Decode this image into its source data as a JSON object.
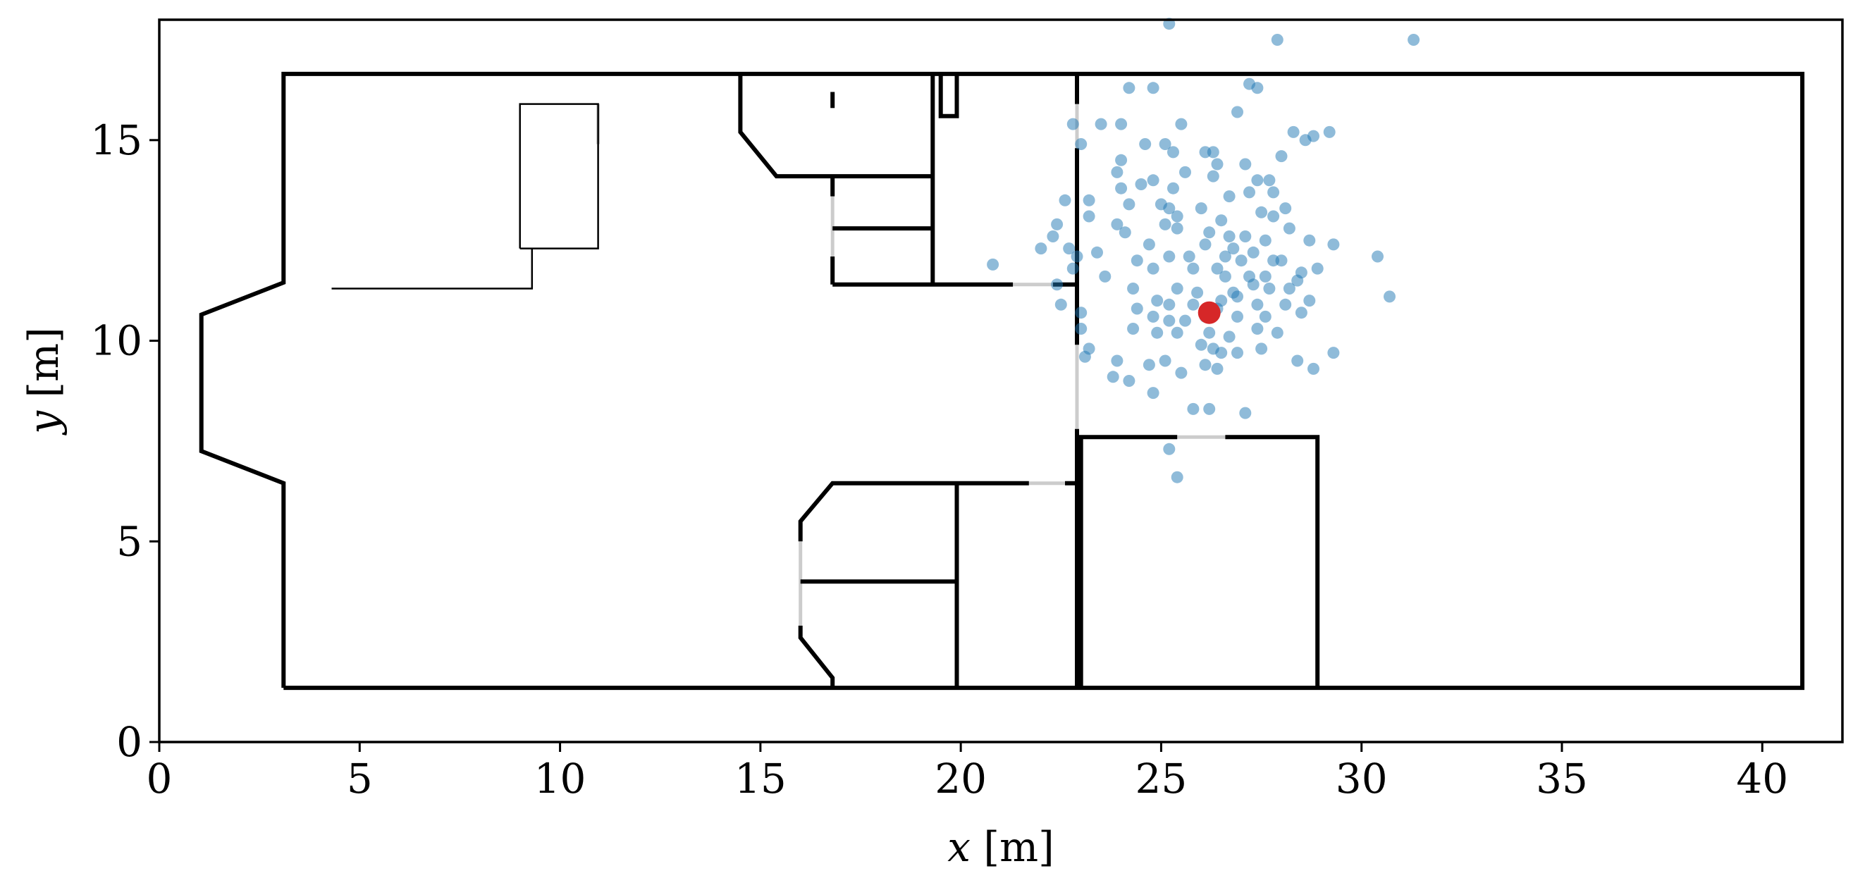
{
  "chart_data": {
    "type": "scatter",
    "xlabel": {
      "var": "x",
      "unit": " [m]"
    },
    "ylabel": {
      "var": "y",
      "unit": " [m]"
    },
    "xlim": [
      0,
      42
    ],
    "ylim": [
      0,
      18
    ],
    "xticks": [
      0,
      5,
      10,
      15,
      20,
      25,
      30,
      35,
      40
    ],
    "yticks": [
      0,
      5,
      10,
      15
    ],
    "grid": false,
    "colors": {
      "walls": "#000000",
      "doors": "#cccccc",
      "particles": "#1f77b4",
      "estimate": "#d62728"
    },
    "floorplan": {
      "walls": [
        [
          [
            3.1,
            1.35
          ],
          [
            41.0,
            1.35
          ],
          [
            41.0,
            16.65
          ],
          [
            3.1,
            16.65
          ],
          [
            3.1,
            11.45
          ],
          [
            1.05,
            10.65
          ],
          [
            1.05,
            7.25
          ],
          [
            3.1,
            6.45
          ],
          [
            3.1,
            1.35
          ]
        ],
        [
          [
            14.5,
            16.65
          ],
          [
            14.5,
            15.2
          ],
          [
            15.4,
            14.1
          ],
          [
            19.3,
            14.1
          ]
        ],
        [
          [
            16.8,
            16.2
          ],
          [
            16.8,
            15.8
          ]
        ],
        [
          [
            16.8,
            14.1
          ],
          [
            16.8,
            13.6
          ]
        ],
        [
          [
            16.8,
            12.1
          ],
          [
            16.8,
            11.4
          ]
        ],
        [
          [
            16.8,
            12.8
          ],
          [
            19.3,
            12.8
          ]
        ],
        [
          [
            19.3,
            16.65
          ],
          [
            19.3,
            11.4
          ]
        ],
        [
          [
            19.5,
            16.65
          ],
          [
            19.5,
            15.6
          ],
          [
            19.9,
            15.6
          ],
          [
            19.9,
            16.65
          ]
        ],
        [
          [
            16.8,
            11.4
          ],
          [
            21.3,
            11.4
          ]
        ],
        [
          [
            22.3,
            11.4
          ],
          [
            22.9,
            11.4
          ]
        ],
        [
          [
            22.9,
            16.65
          ],
          [
            22.9,
            15.9
          ]
        ],
        [
          [
            22.9,
            14.8
          ],
          [
            22.9,
            9.9
          ]
        ],
        [
          [
            22.9,
            7.8
          ],
          [
            22.9,
            1.35
          ]
        ],
        [
          [
            16.8,
            1.35
          ],
          [
            16.8,
            1.6
          ],
          [
            16.0,
            2.6
          ],
          [
            16.0,
            2.9
          ]
        ],
        [
          [
            16.0,
            5.0
          ],
          [
            16.0,
            5.5
          ],
          [
            16.8,
            6.45
          ],
          [
            21.7,
            6.45
          ]
        ],
        [
          [
            22.6,
            6.45
          ],
          [
            22.9,
            6.45
          ]
        ],
        [
          [
            16.0,
            4.0
          ],
          [
            19.9,
            4.0
          ]
        ],
        [
          [
            19.9,
            6.45
          ],
          [
            19.9,
            1.35
          ]
        ],
        [
          [
            23.0,
            1.35
          ],
          [
            23.0,
            7.6
          ],
          [
            25.4,
            7.6
          ]
        ],
        [
          [
            26.6,
            7.6
          ],
          [
            28.9,
            7.6
          ],
          [
            28.9,
            1.35
          ]
        ]
      ],
      "doors": [
        [
          [
            16.8,
            13.6
          ],
          [
            16.8,
            12.1
          ]
        ],
        [
          [
            21.3,
            11.4
          ],
          [
            22.3,
            11.4
          ]
        ],
        [
          [
            22.9,
            15.9
          ],
          [
            22.9,
            14.8
          ]
        ],
        [
          [
            22.9,
            9.9
          ],
          [
            22.9,
            7.8
          ]
        ],
        [
          [
            16.0,
            2.9
          ],
          [
            16.0,
            5.0
          ]
        ],
        [
          [
            21.7,
            6.45
          ],
          [
            22.6,
            6.45
          ]
        ],
        [
          [
            25.4,
            7.6
          ],
          [
            26.6,
            7.6
          ]
        ],
        [
          [
            10.95,
            15.9
          ],
          [
            10.95,
            14.9
          ]
        ]
      ],
      "furniture": [
        [
          [
            9.0,
            12.3
          ],
          [
            9.0,
            15.9
          ],
          [
            10.95,
            15.9
          ],
          [
            10.95,
            14.9
          ]
        ],
        [
          [
            10.95,
            14.9
          ],
          [
            10.95,
            12.3
          ],
          [
            9.0,
            12.3
          ]
        ],
        [
          [
            4.3,
            11.3
          ],
          [
            9.3,
            11.3
          ],
          [
            9.3,
            12.3
          ]
        ]
      ]
    },
    "series": [
      {
        "type": "scatter",
        "values": [
          [
            25.2,
            17.9
          ],
          [
            27.9,
            17.5
          ],
          [
            31.3,
            17.5
          ],
          [
            24.2,
            16.3
          ],
          [
            24.8,
            16.3
          ],
          [
            27.2,
            16.4
          ],
          [
            27.4,
            16.3
          ],
          [
            26.9,
            15.7
          ],
          [
            22.8,
            15.4
          ],
          [
            23.5,
            15.4
          ],
          [
            24.0,
            15.4
          ],
          [
            25.5,
            15.4
          ],
          [
            28.3,
            15.2
          ],
          [
            28.6,
            15.0
          ],
          [
            28.8,
            15.1
          ],
          [
            29.2,
            15.2
          ],
          [
            24.6,
            14.9
          ],
          [
            25.1,
            14.9
          ],
          [
            25.3,
            14.7
          ],
          [
            26.1,
            14.7
          ],
          [
            26.3,
            14.7
          ],
          [
            23.0,
            14.9
          ],
          [
            24.0,
            14.5
          ],
          [
            26.4,
            14.4
          ],
          [
            27.1,
            14.4
          ],
          [
            28.0,
            14.6
          ],
          [
            23.9,
            14.2
          ],
          [
            25.6,
            14.2
          ],
          [
            26.3,
            14.1
          ],
          [
            26.7,
            13.6
          ],
          [
            27.2,
            13.7
          ],
          [
            27.4,
            14.0
          ],
          [
            27.7,
            14.0
          ],
          [
            27.8,
            13.7
          ],
          [
            24.0,
            13.8
          ],
          [
            24.5,
            13.9
          ],
          [
            24.8,
            14.0
          ],
          [
            25.0,
            13.4
          ],
          [
            25.3,
            13.8
          ],
          [
            22.6,
            13.5
          ],
          [
            23.2,
            13.5
          ],
          [
            23.2,
            13.1
          ],
          [
            24.2,
            13.4
          ],
          [
            25.2,
            13.3
          ],
          [
            25.4,
            13.1
          ],
          [
            26.0,
            13.3
          ],
          [
            26.5,
            13.0
          ],
          [
            27.5,
            13.2
          ],
          [
            27.8,
            13.1
          ],
          [
            28.1,
            13.3
          ],
          [
            25.1,
            12.9
          ],
          [
            26.2,
            12.7
          ],
          [
            26.7,
            12.6
          ],
          [
            27.1,
            12.6
          ],
          [
            28.2,
            12.8
          ],
          [
            22.4,
            12.9
          ],
          [
            23.9,
            12.9
          ],
          [
            24.1,
            12.7
          ],
          [
            25.4,
            12.8
          ],
          [
            26.8,
            12.3
          ],
          [
            27.3,
            12.2
          ],
          [
            27.6,
            12.5
          ],
          [
            28.7,
            12.5
          ],
          [
            29.3,
            12.4
          ],
          [
            22.3,
            12.6
          ],
          [
            22.7,
            12.3
          ],
          [
            23.4,
            12.2
          ],
          [
            24.7,
            12.4
          ],
          [
            25.2,
            12.1
          ],
          [
            25.7,
            12.1
          ],
          [
            26.1,
            12.4
          ],
          [
            26.6,
            12.1
          ],
          [
            27.0,
            12.0
          ],
          [
            27.8,
            12.0
          ],
          [
            28.0,
            12.0
          ],
          [
            20.8,
            11.9
          ],
          [
            22.0,
            12.3
          ],
          [
            22.9,
            12.1
          ],
          [
            24.4,
            12.0
          ],
          [
            24.8,
            11.8
          ],
          [
            25.8,
            11.8
          ],
          [
            26.4,
            11.8
          ],
          [
            26.6,
            11.6
          ],
          [
            27.2,
            11.6
          ],
          [
            27.6,
            11.6
          ],
          [
            28.5,
            11.7
          ],
          [
            28.9,
            11.8
          ],
          [
            30.4,
            12.1
          ],
          [
            22.8,
            11.8
          ],
          [
            23.6,
            11.6
          ],
          [
            24.3,
            11.3
          ],
          [
            25.4,
            11.3
          ],
          [
            25.9,
            11.2
          ],
          [
            26.8,
            11.2
          ],
          [
            27.3,
            11.4
          ],
          [
            27.7,
            11.3
          ],
          [
            28.2,
            11.3
          ],
          [
            28.4,
            11.5
          ],
          [
            22.4,
            11.4
          ],
          [
            24.9,
            11.0
          ],
          [
            25.2,
            10.9
          ],
          [
            25.8,
            10.9
          ],
          [
            26.1,
            10.6
          ],
          [
            26.5,
            11.0
          ],
          [
            26.9,
            11.1
          ],
          [
            27.4,
            10.9
          ],
          [
            28.1,
            10.9
          ],
          [
            28.7,
            11.0
          ],
          [
            30.7,
            11.1
          ],
          [
            22.5,
            10.9
          ],
          [
            23.0,
            10.7
          ],
          [
            24.4,
            10.8
          ],
          [
            24.8,
            10.6
          ],
          [
            25.2,
            10.5
          ],
          [
            25.6,
            10.5
          ],
          [
            26.4,
            10.8
          ],
          [
            26.9,
            10.6
          ],
          [
            27.6,
            10.6
          ],
          [
            28.5,
            10.7
          ],
          [
            23.0,
            10.3
          ],
          [
            24.3,
            10.3
          ],
          [
            24.9,
            10.2
          ],
          [
            25.4,
            10.2
          ],
          [
            26.2,
            10.2
          ],
          [
            26.7,
            10.1
          ],
          [
            27.4,
            10.3
          ],
          [
            27.9,
            10.2
          ],
          [
            26.0,
            9.9
          ],
          [
            26.3,
            9.8
          ],
          [
            26.5,
            9.7
          ],
          [
            26.9,
            9.7
          ],
          [
            27.5,
            9.8
          ],
          [
            28.4,
            9.5
          ],
          [
            28.8,
            9.3
          ],
          [
            29.3,
            9.7
          ],
          [
            23.2,
            9.8
          ],
          [
            23.9,
            9.5
          ],
          [
            24.7,
            9.4
          ],
          [
            25.1,
            9.5
          ],
          [
            25.5,
            9.2
          ],
          [
            26.1,
            9.4
          ],
          [
            26.4,
            9.3
          ],
          [
            23.1,
            9.6
          ],
          [
            23.8,
            9.1
          ],
          [
            24.2,
            9.0
          ],
          [
            24.8,
            8.7
          ],
          [
            25.8,
            8.3
          ],
          [
            26.2,
            8.3
          ],
          [
            27.1,
            8.2
          ],
          [
            25.2,
            7.3
          ],
          [
            25.4,
            6.6
          ]
        ]
      },
      {
        "type": "estimate",
        "values": [
          [
            26.2,
            10.7
          ]
        ]
      }
    ]
  }
}
